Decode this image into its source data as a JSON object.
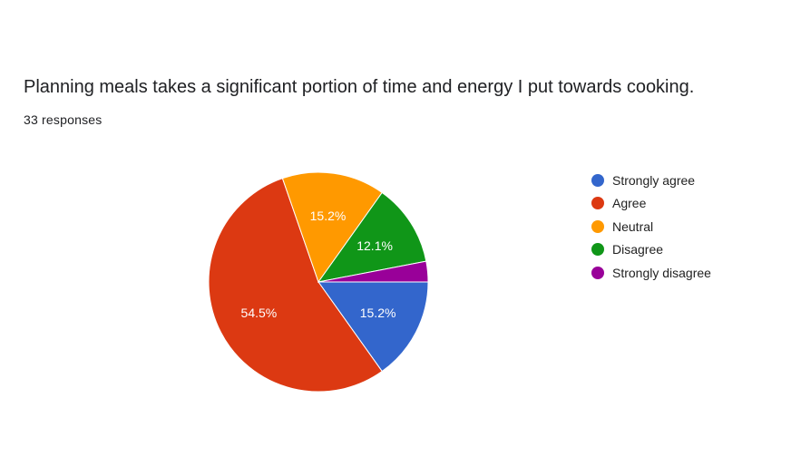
{
  "question": {
    "title": "Planning meals takes a significant portion of time and energy I put towards cooking.",
    "responses": "33 responses"
  },
  "chart_data": {
    "type": "pie",
    "title": "Planning meals takes a significant portion of time and energy I put towards cooking.",
    "total_responses": 33,
    "slices": [
      {
        "label": "Strongly agree",
        "count": 5,
        "percent": 15.2,
        "percent_label": "15.2%",
        "color": "#3366cc"
      },
      {
        "label": "Agree",
        "count": 18,
        "percent": 54.5,
        "percent_label": "54.5%",
        "color": "#dc3912"
      },
      {
        "label": "Neutral",
        "count": 5,
        "percent": 15.2,
        "percent_label": "15.2%",
        "color": "#ff9900"
      },
      {
        "label": "Disagree",
        "count": 4,
        "percent": 12.1,
        "percent_label": "12.1%",
        "color": "#109618"
      },
      {
        "label": "Strongly disagree",
        "count": 1,
        "percent": 3.0,
        "percent_label": "",
        "color": "#990099"
      }
    ],
    "legend_position": "right",
    "start_direction": "east",
    "rotation": "clockwise"
  }
}
